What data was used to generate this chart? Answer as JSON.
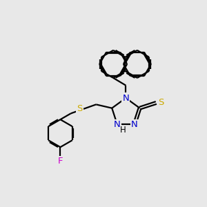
{
  "background_color": "#e8e8e8",
  "bond_color": "#000000",
  "N_color": "#0000cc",
  "S_color": "#ccaa00",
  "F_color": "#cc00cc",
  "line_width": 1.6,
  "figsize": [
    3.0,
    3.0
  ],
  "dpi": 100,
  "xlim": [
    0,
    10
  ],
  "ylim": [
    0,
    10
  ]
}
